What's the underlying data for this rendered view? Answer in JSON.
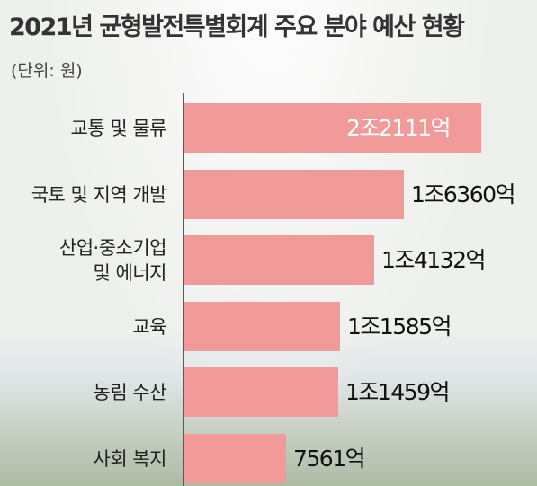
{
  "title": "2021년 균형발전특별회계 주요 분야 예산 현황",
  "unit_note": "(단위: 원)",
  "colors": {
    "bar": "#f09a9a",
    "axis": "#5a5a5a",
    "text": "#222222"
  },
  "chart_data": {
    "type": "bar",
    "orientation": "horizontal",
    "title": "2021년 균형발전특별회계 주요 분야 예산 현황",
    "unit": "원",
    "categories": [
      "교통 및 물류",
      "국토 및 지역 개발",
      "산업·중소기업\n및 에너지",
      "교육",
      "농림 수산",
      "사회 복지"
    ],
    "values": [
      22111,
      16360,
      14132,
      11585,
      11459,
      7561
    ],
    "value_unit": "억",
    "value_labels": [
      "2조2111억",
      "1조6360억",
      "1조4132억",
      "1조1585억",
      "1조1459억",
      "7561억"
    ],
    "xlim": [
      0,
      24000
    ],
    "grid": false
  }
}
